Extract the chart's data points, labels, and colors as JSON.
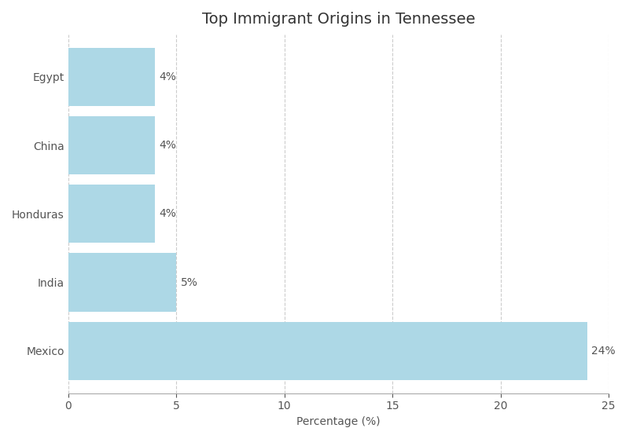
{
  "title": "Top Immigrant Origins in Tennessee",
  "categories": [
    "Mexico",
    "India",
    "Honduras",
    "China",
    "Egypt"
  ],
  "values": [
    24,
    5,
    4,
    4,
    4
  ],
  "labels": [
    "24%",
    "5%",
    "4%",
    "4%",
    "4%"
  ],
  "bar_color": "#add8e6",
  "xlabel": "Percentage (%)",
  "xlim": [
    0,
    25
  ],
  "xticks": [
    0,
    5,
    10,
    15,
    20,
    25
  ],
  "background_color": "#ffffff",
  "title_fontsize": 14,
  "label_fontsize": 10,
  "tick_fontsize": 10,
  "bar_height": 0.85,
  "grid_color": "#cccccc",
  "grid_linestyle": "--",
  "grid_linewidth": 0.8
}
